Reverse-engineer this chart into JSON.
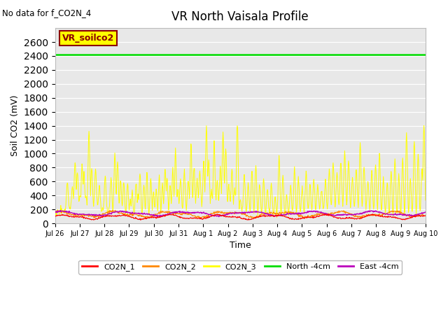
{
  "title": "VR North Vaisala Profile",
  "no_data_text": "No data for f_CO2N_4",
  "annotation_text": "VR_soilco2",
  "xlabel": "Time",
  "ylabel": "Soil CO2 (mV)",
  "ylim": [
    0,
    2800
  ],
  "yticks": [
    0,
    200,
    400,
    600,
    800,
    1000,
    1200,
    1400,
    1600,
    1800,
    2000,
    2200,
    2400,
    2600
  ],
  "north_4cm_value": 2420,
  "bg_color": "#e8e8e8",
  "fig_bg": "#ffffff",
  "line_colors": {
    "CO2N_1": "#ff0000",
    "CO2N_2": "#ff8800",
    "CO2N_3": "#ffff00",
    "North_4cm": "#00dd00",
    "East_4cm": "#bb00bb"
  },
  "legend_labels": [
    "CO2N_1",
    "CO2N_2",
    "CO2N_3",
    "North -4cm",
    "East -4cm"
  ],
  "legend_colors": [
    "#ff0000",
    "#ff8800",
    "#ffff00",
    "#00dd00",
    "#bb00bb"
  ],
  "x_tick_labels": [
    "Jul 26",
    "Jul 27",
    "Jul 28",
    "Jul 29",
    "Jul 30",
    "Jul 31",
    "Aug 1",
    "Aug 2",
    "Aug 3",
    "Aug 4",
    "Aug 5",
    "Aug 6",
    "Aug 7",
    "Aug 8",
    "Aug 9",
    "Aug 10"
  ],
  "num_points": 960
}
